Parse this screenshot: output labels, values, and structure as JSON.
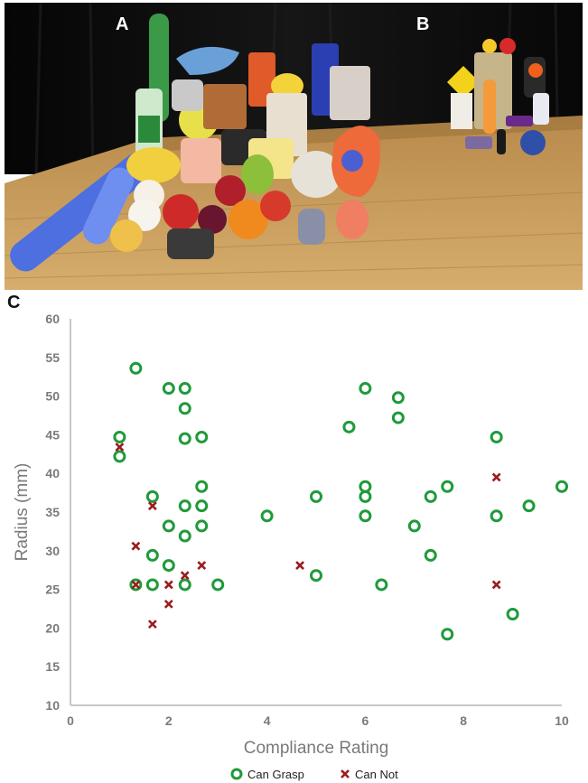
{
  "panels": {
    "a": "A",
    "b": "B",
    "c": "C"
  },
  "photo": {
    "kind": "photograph",
    "scene": "household objects on wooden table",
    "colors": {
      "curtain": "#0d0d0d",
      "table": "#c9a063",
      "table_dark": "#a77b3f"
    }
  },
  "chart_data": {
    "type": "scatter",
    "title": "",
    "xlabel": "Compliance Rating",
    "ylabel": "Radius (mm)",
    "xlim": [
      0,
      10
    ],
    "ylim": [
      10,
      60
    ],
    "x_ticks": [
      "0",
      "2",
      "4",
      "6",
      "8",
      "10"
    ],
    "y_ticks": [
      "10",
      "15",
      "20",
      "25",
      "30",
      "35",
      "40",
      "45",
      "50",
      "55",
      "60"
    ],
    "grid": false,
    "legend_position": "bottom-center",
    "series": [
      {
        "name": "Can Grasp",
        "marker": "circle",
        "color": "#1f9a3a",
        "points": [
          [
            1.0,
            44.7
          ],
          [
            1.0,
            42.2
          ],
          [
            1.33,
            53.6
          ],
          [
            1.67,
            37.0
          ],
          [
            1.33,
            25.6
          ],
          [
            1.67,
            25.6
          ],
          [
            1.67,
            29.4
          ],
          [
            2.0,
            51.0
          ],
          [
            2.0,
            33.2
          ],
          [
            2.0,
            28.1
          ],
          [
            2.33,
            51.0
          ],
          [
            2.33,
            48.4
          ],
          [
            2.33,
            44.5
          ],
          [
            2.33,
            35.8
          ],
          [
            2.33,
            31.9
          ],
          [
            2.33,
            25.6
          ],
          [
            2.67,
            44.7
          ],
          [
            2.67,
            38.3
          ],
          [
            2.67,
            35.8
          ],
          [
            2.67,
            33.2
          ],
          [
            3.0,
            25.6
          ],
          [
            4.0,
            34.5
          ],
          [
            5.0,
            37.0
          ],
          [
            5.0,
            26.8
          ],
          [
            5.67,
            46.0
          ],
          [
            6.0,
            51.0
          ],
          [
            6.0,
            38.3
          ],
          [
            6.0,
            37.0
          ],
          [
            6.0,
            34.5
          ],
          [
            6.33,
            25.6
          ],
          [
            6.67,
            49.8
          ],
          [
            6.67,
            47.2
          ],
          [
            7.0,
            33.2
          ],
          [
            7.33,
            37.0
          ],
          [
            7.33,
            29.4
          ],
          [
            7.67,
            38.3
          ],
          [
            7.67,
            19.2
          ],
          [
            8.67,
            44.7
          ],
          [
            8.67,
            34.5
          ],
          [
            9.0,
            21.8
          ],
          [
            9.33,
            35.8
          ],
          [
            10.0,
            38.3
          ]
        ]
      },
      {
        "name": "Can Not",
        "marker": "x",
        "color": "#9b1c1f",
        "points": [
          [
            1.0,
            43.4
          ],
          [
            1.33,
            30.6
          ],
          [
            1.33,
            25.6
          ],
          [
            1.67,
            35.8
          ],
          [
            1.67,
            20.5
          ],
          [
            2.0,
            25.6
          ],
          [
            2.0,
            23.1
          ],
          [
            2.33,
            26.8
          ],
          [
            2.67,
            28.1
          ],
          [
            4.67,
            28.1
          ],
          [
            8.67,
            39.5
          ],
          [
            8.67,
            25.6
          ]
        ]
      }
    ]
  }
}
